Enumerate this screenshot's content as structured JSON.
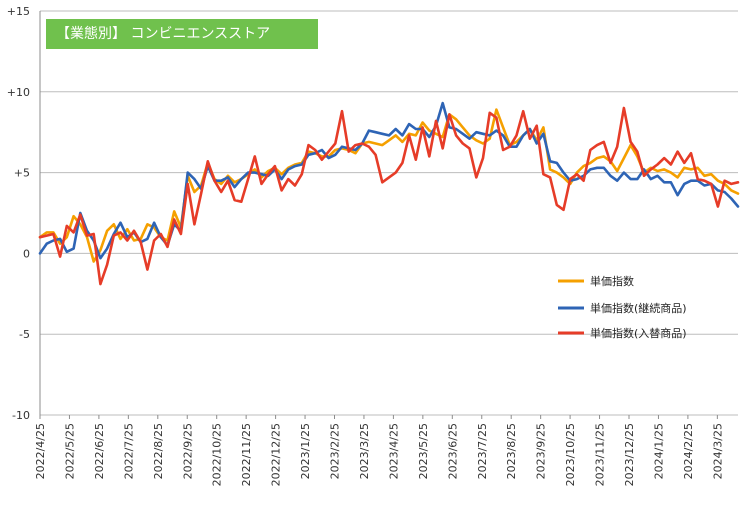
{
  "chart_data": {
    "type": "line",
    "title": "【業態別】 コンビニエンスストア",
    "ylim": [
      -10,
      15
    ],
    "yticks": [
      {
        "value": 15,
        "label": "+15"
      },
      {
        "value": 10,
        "label": "+10"
      },
      {
        "value": 5,
        "label": "+5"
      },
      {
        "value": 0,
        "label": "0"
      },
      {
        "value": -5,
        "label": "-5"
      },
      {
        "value": -10,
        "label": "-10"
      }
    ],
    "xtick_labels": [
      "2022/4/25",
      "2022/5/25",
      "2022/6/25",
      "2022/7/25",
      "2022/8/25",
      "2022/9/25",
      "2022/10/25",
      "2022/11/25",
      "2022/12/25",
      "2023/1/25",
      "2023/2/25",
      "2023/3/25",
      "2023/4/25",
      "2023/5/25",
      "2023/6/25",
      "2023/7/25",
      "2023/8/25",
      "2023/9/25",
      "2023/10/25",
      "2023/11/25",
      "2023/12/25",
      "2024/1/25",
      "2024/2/25",
      "2024/3/25"
    ],
    "legend_position": "right",
    "grid": "horizontal",
    "series": [
      {
        "name": "単価指数",
        "color": "#f5a000",
        "values": [
          1.0,
          1.3,
          1.3,
          0.6,
          1.0,
          2.3,
          1.8,
          1.0,
          -0.5,
          0.2,
          1.4,
          1.8,
          0.9,
          1.5,
          0.8,
          0.9,
          1.8,
          1.6,
          1.0,
          0.8,
          2.6,
          1.6,
          4.8,
          3.8,
          4.2,
          5.6,
          4.6,
          4.3,
          4.8,
          4.4,
          4.6,
          4.9,
          5.2,
          4.7,
          5.1,
          5.3,
          4.9,
          5.3,
          5.5,
          5.6,
          6.3,
          6.2,
          6.0,
          6.0,
          6.4,
          6.5,
          6.4,
          6.2,
          6.8,
          6.9,
          6.8,
          6.7,
          7.0,
          7.3,
          6.9,
          7.4,
          7.3,
          8.1,
          7.6,
          7.4,
          7.2,
          8.6,
          8.3,
          7.8,
          7.3,
          7.0,
          6.8,
          7.1,
          8.9,
          7.8,
          6.7,
          6.9,
          7.3,
          7.7,
          7.0,
          7.8,
          5.2,
          5.0,
          4.7,
          4.3,
          5.0,
          5.4,
          5.6,
          5.9,
          6.0,
          5.7,
          5.1,
          5.9,
          6.7,
          6.0,
          5.0,
          5.3,
          5.1,
          5.2,
          5.0,
          4.7,
          5.3,
          5.2,
          5.3,
          4.8,
          4.9,
          4.5,
          4.3,
          3.9,
          3.7
        ]
      },
      {
        "name": "単価指数(継続商品)",
        "color": "#2e64b5",
        "values": [
          0.0,
          0.6,
          0.8,
          0.9,
          0.1,
          0.3,
          2.5,
          1.4,
          0.8,
          -0.3,
          0.3,
          1.2,
          1.9,
          1.0,
          1.3,
          0.7,
          0.9,
          1.9,
          1.0,
          0.5,
          1.8,
          1.4,
          5.0,
          4.6,
          4.0,
          5.4,
          4.5,
          4.5,
          4.7,
          4.1,
          4.6,
          5.0,
          5.0,
          4.9,
          4.8,
          5.2,
          4.6,
          5.2,
          5.4,
          5.5,
          6.1,
          6.2,
          6.4,
          5.9,
          6.1,
          6.6,
          6.5,
          6.4,
          6.8,
          7.6,
          7.5,
          7.4,
          7.3,
          7.7,
          7.3,
          8.0,
          7.7,
          7.7,
          7.2,
          7.9,
          9.3,
          7.8,
          7.7,
          7.4,
          7.1,
          7.5,
          7.4,
          7.3,
          7.6,
          7.3,
          6.6,
          6.6,
          7.3,
          7.7,
          6.8,
          7.4,
          5.7,
          5.6,
          5.0,
          4.5,
          4.6,
          4.8,
          5.2,
          5.3,
          5.3,
          4.8,
          4.5,
          5.0,
          4.6,
          4.6,
          5.2,
          4.6,
          4.8,
          4.4,
          4.4,
          3.6,
          4.3,
          4.5,
          4.5,
          4.2,
          4.3,
          3.9,
          3.8,
          3.4,
          2.9
        ]
      },
      {
        "name": "単価指数(入替商品)",
        "color": "#e63c28",
        "values": [
          1.0,
          1.1,
          1.2,
          -0.2,
          1.7,
          1.3,
          2.4,
          1.1,
          1.2,
          -1.9,
          -0.7,
          1.1,
          1.3,
          0.8,
          1.4,
          0.7,
          -1.0,
          0.8,
          1.2,
          0.4,
          2.1,
          1.2,
          4.3,
          1.8,
          3.7,
          5.7,
          4.5,
          3.8,
          4.5,
          3.3,
          3.2,
          4.6,
          6.0,
          4.3,
          4.9,
          5.4,
          3.9,
          4.6,
          4.2,
          4.9,
          6.7,
          6.4,
          5.8,
          6.3,
          6.8,
          8.8,
          6.3,
          6.7,
          6.8,
          6.6,
          6.1,
          4.4,
          4.7,
          5.0,
          5.6,
          7.3,
          5.8,
          7.8,
          6.0,
          8.2,
          6.5,
          8.6,
          7.3,
          6.8,
          6.5,
          4.7,
          5.9,
          8.7,
          8.4,
          6.4,
          6.6,
          7.3,
          8.8,
          7.1,
          7.9,
          4.9,
          4.7,
          3.0,
          2.7,
          4.6,
          4.9,
          4.5,
          6.4,
          6.7,
          6.9,
          5.6,
          6.6,
          9.0,
          6.9,
          6.3,
          4.8,
          5.2,
          5.5,
          5.9,
          5.5,
          6.3,
          5.6,
          6.2,
          4.6,
          4.5,
          4.3,
          2.9,
          4.5,
          4.3,
          4.4
        ]
      }
    ]
  }
}
